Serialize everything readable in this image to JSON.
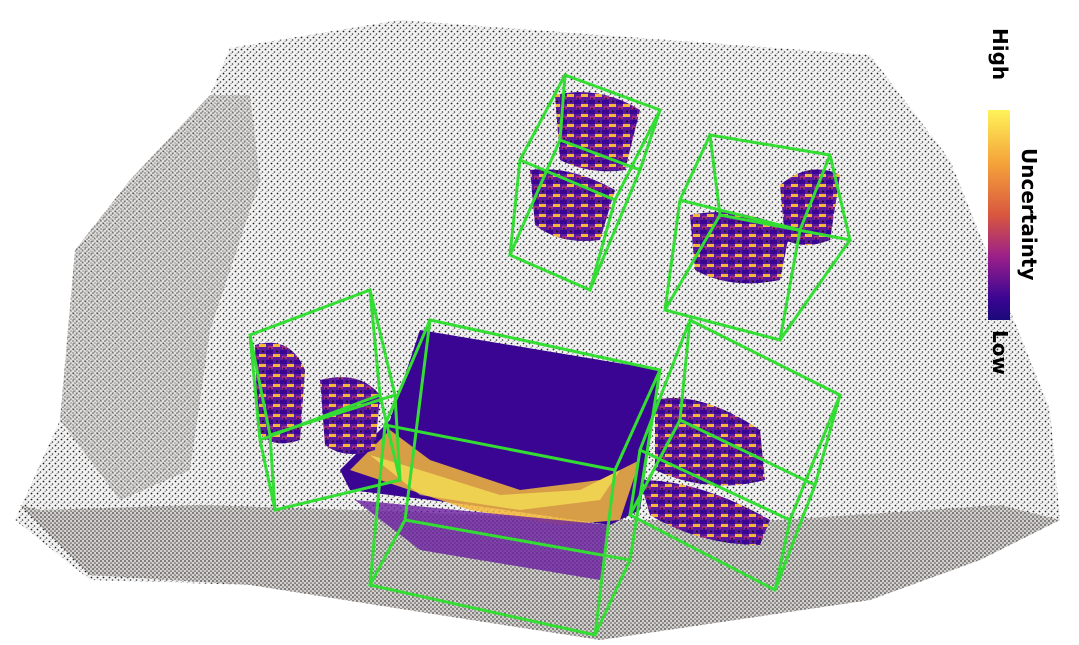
{
  "legend": {
    "high_label": "High",
    "low_label": "Low",
    "title": "Uncertainty",
    "colormap": [
      "#fff35a",
      "#f5a43a",
      "#d9573f",
      "#9a1f8a",
      "#3a0593",
      "#1a0a7a"
    ]
  },
  "colors": {
    "box_outline": "#33dd33",
    "point_cloud": "#3a3a3a",
    "low_uncertainty": "#3a0593",
    "high_uncertainty": "#fff35a"
  }
}
